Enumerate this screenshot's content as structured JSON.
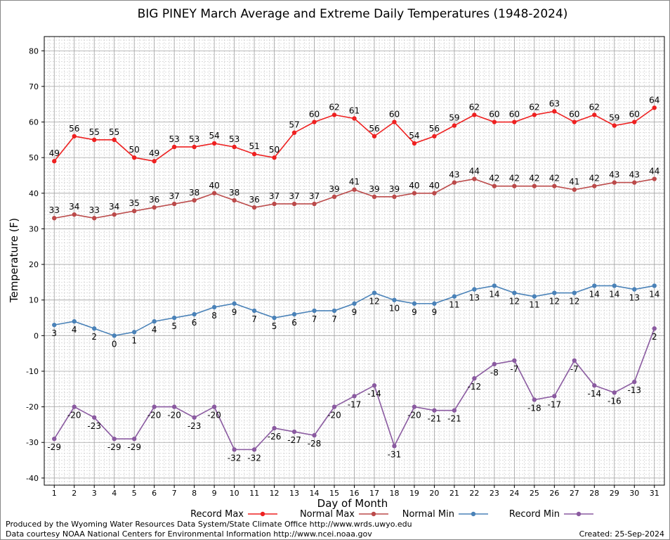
{
  "chart_data": {
    "type": "line",
    "title": "BIG PINEY March Average and Extreme Daily Temperatures (1948-2024)",
    "xlabel": "Day of Month",
    "ylabel": "Temperature (F)",
    "x": [
      1,
      2,
      3,
      4,
      5,
      6,
      7,
      8,
      9,
      10,
      11,
      12,
      13,
      14,
      15,
      16,
      17,
      18,
      19,
      20,
      21,
      22,
      23,
      24,
      25,
      26,
      27,
      28,
      29,
      30,
      31
    ],
    "x_ticks": [
      "1",
      "2",
      "3",
      "4",
      "5",
      "6",
      "7",
      "8",
      "9",
      "10",
      "11",
      "12",
      "13",
      "14",
      "15",
      "16",
      "17",
      "18",
      "19",
      "20",
      "21",
      "22",
      "23",
      "24",
      "25",
      "26",
      "27",
      "28",
      "29",
      "30",
      "31"
    ],
    "ylim": [
      -42,
      84
    ],
    "y_ticks": [
      -40,
      -30,
      -20,
      -10,
      0,
      10,
      20,
      30,
      40,
      50,
      60,
      70,
      80
    ],
    "grid": true,
    "legend_position": "bottom",
    "series": [
      {
        "name": "Record Max",
        "color": "#ee2020",
        "label_position": "above",
        "values": [
          49,
          56,
          55,
          55,
          50,
          49,
          53,
          53,
          54,
          53,
          51,
          50,
          57,
          60,
          62,
          61,
          56,
          60,
          54,
          56,
          59,
          62,
          60,
          60,
          62,
          63,
          60,
          62,
          59,
          60,
          64
        ]
      },
      {
        "name": "Normal Max",
        "color": "#bb4a4a",
        "label_position": "above",
        "values": [
          33,
          34,
          33,
          34,
          35,
          36,
          37,
          38,
          40,
          38,
          36,
          37,
          37,
          37,
          39,
          41,
          39,
          39,
          40,
          40,
          43,
          44,
          42,
          42,
          42,
          42,
          41,
          42,
          43,
          43,
          44
        ]
      },
      {
        "name": "Normal Min",
        "color": "#4a82b8",
        "label_position": "below",
        "values": [
          3,
          4,
          2,
          0,
          1,
          4,
          5,
          6,
          8,
          9,
          7,
          5,
          6,
          7,
          7,
          9,
          12,
          10,
          9,
          9,
          11,
          13,
          14,
          12,
          11,
          12,
          12,
          14,
          14,
          13,
          14
        ]
      },
      {
        "name": "Record Min",
        "color": "#8a5aa0",
        "label_position": "below",
        "values": [
          -29,
          -20,
          -23,
          -29,
          -29,
          -20,
          -20,
          -23,
          -20,
          -32,
          -32,
          -26,
          -27,
          -28,
          -20,
          -17,
          -14,
          -31,
          -20,
          -21,
          -21,
          -12,
          -8,
          -7,
          -18,
          -17,
          -7,
          -14,
          -16,
          -13,
          2
        ]
      }
    ]
  },
  "footer": {
    "produced_by": "Produced by the Wyoming Water Resources Data System/State Climate Office http://www.wrds.uwyo.edu",
    "courtesy": "Data courtesy NOAA National Centers for Environmental Information http://www.ncei.noaa.gov",
    "created": "Created:  25-Sep-2024"
  }
}
